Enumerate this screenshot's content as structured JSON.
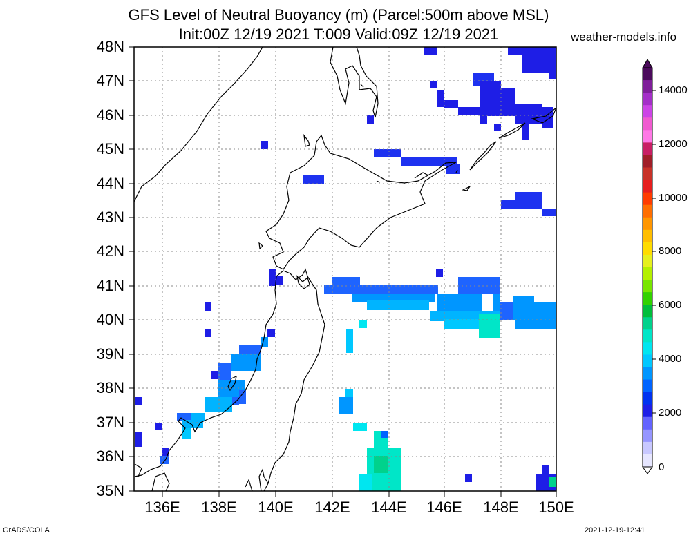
{
  "header": {
    "title_line1": "GFS Level of Neutral Buoyancy (m) (Parcel:500m above MSL)",
    "title_line2": "Init:00Z 12/19 2021 T:009 Valid:09Z 12/19 2021",
    "site": "weather-models.info"
  },
  "footer": {
    "left": "GrADS/COLA",
    "right": "2021-12-19-12:41"
  },
  "axes": {
    "lat_labels": [
      "48N",
      "47N",
      "46N",
      "45N",
      "44N",
      "43N",
      "42N",
      "41N",
      "40N",
      "39N",
      "38N",
      "37N",
      "36N",
      "35N"
    ],
    "lon_labels": [
      "136E",
      "138E",
      "140E",
      "142E",
      "144E",
      "146E",
      "148E",
      "150E"
    ]
  },
  "colorbar": {
    "labels": [
      "14000",
      "12000",
      "10000",
      "8000",
      "6000",
      "4000",
      "2000",
      "0"
    ],
    "colors": [
      "#4b0a5c",
      "#7f1e9a",
      "#a42fc8",
      "#cc44e6",
      "#f05ad0",
      "#ff78e6",
      "#c81e64",
      "#a01e28",
      "#c83228",
      "#e61e1e",
      "#ff3c00",
      "#ff6e00",
      "#ff9600",
      "#ffbe00",
      "#ffdc00",
      "#e6f01e",
      "#b4f000",
      "#78e600",
      "#32d200",
      "#00be3c",
      "#00d28c",
      "#00e6c8",
      "#00e6f0",
      "#00c8ff",
      "#0096ff",
      "#0064ff",
      "#0032f0",
      "#1e1ee6",
      "#6464ff",
      "#9696ff",
      "#c8c8ff",
      "#e6e6ff"
    ]
  },
  "map_data": {
    "projection": "lat-lon",
    "lon_range": [
      135,
      150
    ],
    "lat_range": [
      35,
      48
    ],
    "field": "Level of Neutral Buoyancy (m)"
  }
}
